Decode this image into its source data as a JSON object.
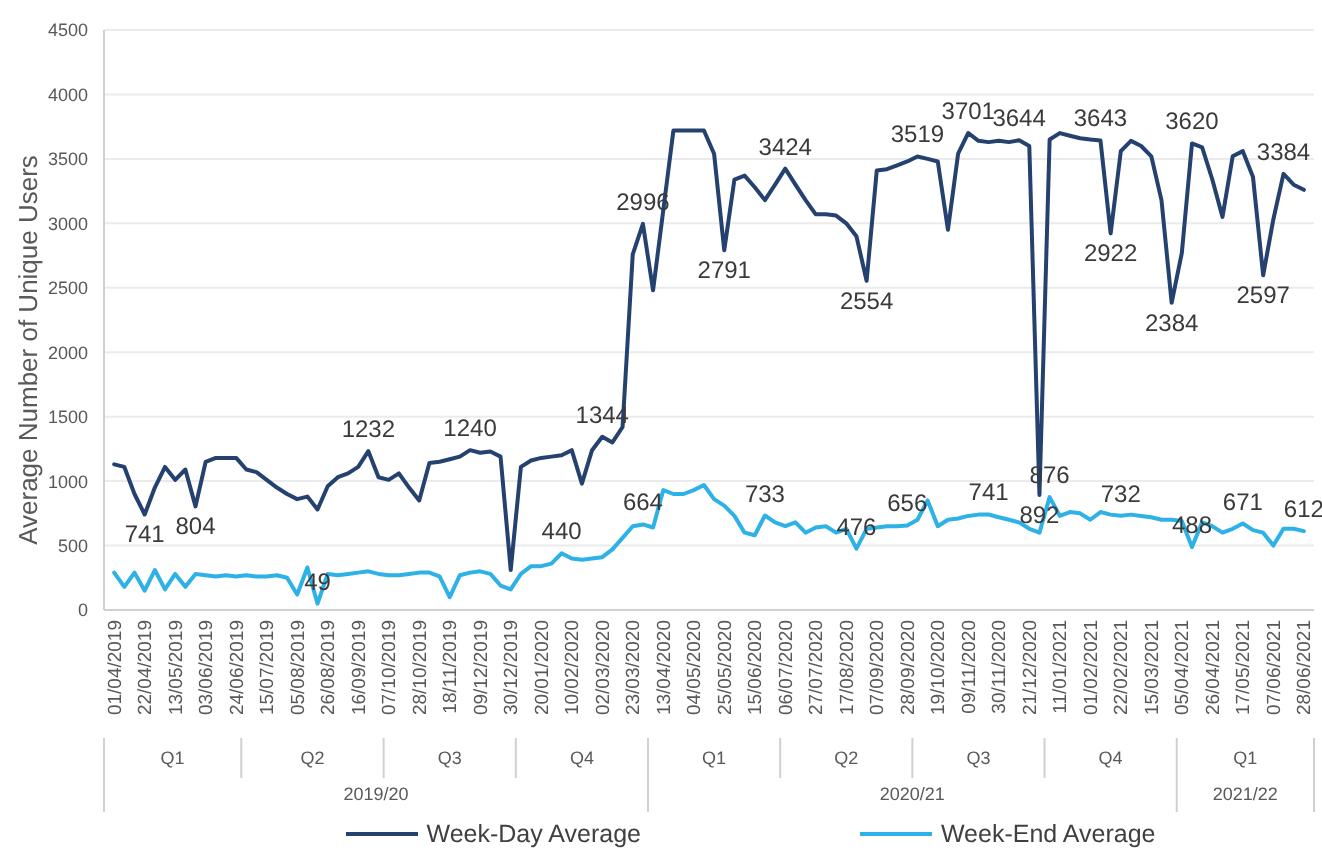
{
  "chart_data": {
    "type": "line",
    "ylabel": "Average Number of Unique Users",
    "x": [
      "2019-04-01",
      "2019-04-08",
      "2019-04-15",
      "2019-04-22",
      "2019-04-29",
      "2019-05-06",
      "2019-05-13",
      "2019-05-20",
      "2019-05-27",
      "2019-06-03",
      "2019-06-10",
      "2019-06-17",
      "2019-06-24",
      "2019-07-01",
      "2019-07-08",
      "2019-07-15",
      "2019-07-22",
      "2019-07-29",
      "2019-08-05",
      "2019-08-12",
      "2019-08-19",
      "2019-08-26",
      "2019-09-02",
      "2019-09-09",
      "2019-09-16",
      "2019-09-23",
      "2019-09-30",
      "2019-10-07",
      "2019-10-14",
      "2019-10-21",
      "2019-10-28",
      "2019-11-04",
      "2019-11-11",
      "2019-11-18",
      "2019-11-25",
      "2019-12-02",
      "2019-12-09",
      "2019-12-16",
      "2019-12-23",
      "2019-12-30",
      "2020-01-06",
      "2020-01-13",
      "2020-01-20",
      "2020-01-27",
      "2020-02-03",
      "2020-02-10",
      "2020-02-17",
      "2020-02-24",
      "2020-03-02",
      "2020-03-09",
      "2020-03-16",
      "2020-03-23",
      "2020-03-30",
      "2020-04-06",
      "2020-04-13",
      "2020-04-20",
      "2020-04-27",
      "2020-05-04",
      "2020-05-11",
      "2020-05-18",
      "2020-05-25",
      "2020-06-01",
      "2020-06-08",
      "2020-06-15",
      "2020-06-22",
      "2020-06-29",
      "2020-07-06",
      "2020-07-13",
      "2020-07-20",
      "2020-07-27",
      "2020-08-03",
      "2020-08-10",
      "2020-08-17",
      "2020-08-24",
      "2020-08-31",
      "2020-09-07",
      "2020-09-14",
      "2020-09-21",
      "2020-09-28",
      "2020-10-05",
      "2020-10-12",
      "2020-10-19",
      "2020-10-26",
      "2020-11-02",
      "2020-11-09",
      "2020-11-16",
      "2020-11-23",
      "2020-11-30",
      "2020-12-07",
      "2020-12-14",
      "2020-12-21",
      "2020-12-28",
      "2021-01-04",
      "2021-01-11",
      "2021-01-18",
      "2021-01-25",
      "2021-02-01",
      "2021-02-08",
      "2021-02-15",
      "2021-02-22",
      "2021-03-01",
      "2021-03-08",
      "2021-03-15",
      "2021-03-22",
      "2021-03-29",
      "2021-04-05",
      "2021-04-12",
      "2021-04-19",
      "2021-04-26",
      "2021-05-03",
      "2021-05-10",
      "2021-05-17",
      "2021-05-24",
      "2021-05-31",
      "2021-06-07",
      "2021-06-14",
      "2021-06-21",
      "2021-06-28"
    ],
    "xlim": [
      "2019-03-25",
      "2021-07-05"
    ],
    "xticks": [
      {
        "value": "2019-04-01",
        "label": "01/04/2019"
      },
      {
        "value": "2019-04-22",
        "label": "22/04/2019"
      },
      {
        "value": "2019-05-13",
        "label": "13/05/2019"
      },
      {
        "value": "2019-06-03",
        "label": "03/06/2019"
      },
      {
        "value": "2019-06-24",
        "label": "24/06/2019"
      },
      {
        "value": "2019-07-15",
        "label": "15/07/2019"
      },
      {
        "value": "2019-08-05",
        "label": "05/08/2019"
      },
      {
        "value": "2019-08-26",
        "label": "26/08/2019"
      },
      {
        "value": "2019-09-16",
        "label": "16/09/2019"
      },
      {
        "value": "2019-10-07",
        "label": "07/10/2019"
      },
      {
        "value": "2019-10-28",
        "label": "28/10/2019"
      },
      {
        "value": "2019-11-18",
        "label": "18/11/2019"
      },
      {
        "value": "2019-12-09",
        "label": "09/12/2019"
      },
      {
        "value": "2019-12-30",
        "label": "30/12/2019"
      },
      {
        "value": "2020-01-20",
        "label": "20/01/2020"
      },
      {
        "value": "2020-02-10",
        "label": "10/02/2020"
      },
      {
        "value": "2020-03-02",
        "label": "02/03/2020"
      },
      {
        "value": "2020-03-23",
        "label": "23/03/2020"
      },
      {
        "value": "2020-04-13",
        "label": "13/04/2020"
      },
      {
        "value": "2020-05-04",
        "label": "04/05/2020"
      },
      {
        "value": "2020-05-25",
        "label": "25/05/2020"
      },
      {
        "value": "2020-06-15",
        "label": "15/06/2020"
      },
      {
        "value": "2020-07-06",
        "label": "06/07/2020"
      },
      {
        "value": "2020-07-27",
        "label": "27/07/2020"
      },
      {
        "value": "2020-08-17",
        "label": "17/08/2020"
      },
      {
        "value": "2020-09-07",
        "label": "07/09/2020"
      },
      {
        "value": "2020-09-28",
        "label": "28/09/2020"
      },
      {
        "value": "2020-10-19",
        "label": "19/10/2020"
      },
      {
        "value": "2020-11-09",
        "label": "09/11/2020"
      },
      {
        "value": "2020-11-30",
        "label": "30/11/2020"
      },
      {
        "value": "2020-12-21",
        "label": "21/12/2020"
      },
      {
        "value": "2021-01-11",
        "label": "11/01/2021"
      },
      {
        "value": "2021-02-01",
        "label": "01/02/2021"
      },
      {
        "value": "2021-02-22",
        "label": "22/02/2021"
      },
      {
        "value": "2021-03-15",
        "label": "15/03/2021"
      },
      {
        "value": "2021-04-05",
        "label": "05/04/2021"
      },
      {
        "value": "2021-04-26",
        "label": "26/04/2021"
      },
      {
        "value": "2021-05-17",
        "label": "17/05/2021"
      },
      {
        "value": "2021-06-07",
        "label": "07/06/2021"
      },
      {
        "value": "2021-06-28",
        "label": "28/06/2021"
      }
    ],
    "ylim": [
      0,
      4500
    ],
    "yticks": [
      0,
      500,
      1000,
      1500,
      2000,
      2500,
      3000,
      3500,
      4000,
      4500
    ],
    "grid": "y",
    "legend": "bottom",
    "series": [
      {
        "name": "Week-Day Average",
        "color": "#24416f",
        "values": [
          1130,
          1110,
          900,
          741,
          950,
          1110,
          1010,
          1090,
          804,
          1150,
          1180,
          1180,
          1180,
          1090,
          1070,
          1010,
          950,
          900,
          860,
          880,
          780,
          960,
          1030,
          1060,
          1110,
          1232,
          1030,
          1010,
          1060,
          950,
          850,
          1140,
          1150,
          1170,
          1190,
          1240,
          1220,
          1230,
          1190,
          310,
          1110,
          1160,
          1180,
          1190,
          1200,
          1240,
          980,
          1240,
          1344,
          1300,
          1420,
          2760,
          2996,
          2480,
          3100,
          3720,
          3720,
          3720,
          3720,
          3540,
          2791,
          3340,
          3370,
          3280,
          3180,
          3300,
          3424,
          3300,
          3180,
          3070,
          3070,
          3060,
          3000,
          2900,
          2554,
          3410,
          3420,
          3450,
          3480,
          3519,
          3500,
          3480,
          2950,
          3540,
          3701,
          3640,
          3630,
          3640,
          3630,
          3644,
          3600,
          892,
          3650,
          3700,
          3680,
          3660,
          3650,
          3643,
          2922,
          3560,
          3640,
          3600,
          3520,
          3180,
          2384,
          2770,
          3620,
          3590,
          3340,
          3050,
          3520,
          3560,
          3360,
          2597,
          3030,
          3384,
          3300,
          3260
        ],
        "value_labels": [
          null,
          null,
          null,
          "741",
          null,
          null,
          null,
          null,
          "804",
          null,
          null,
          null,
          null,
          null,
          null,
          null,
          null,
          null,
          null,
          null,
          null,
          null,
          null,
          null,
          null,
          "1232",
          null,
          null,
          null,
          null,
          null,
          null,
          null,
          null,
          null,
          "1240",
          null,
          null,
          null,
          null,
          null,
          null,
          null,
          null,
          null,
          null,
          null,
          null,
          "1344",
          null,
          null,
          null,
          "2996",
          null,
          null,
          null,
          null,
          null,
          null,
          null,
          "2791",
          null,
          null,
          null,
          null,
          null,
          "3424",
          null,
          null,
          null,
          null,
          null,
          null,
          null,
          "2554",
          null,
          null,
          null,
          null,
          "3519",
          null,
          null,
          null,
          null,
          "3701",
          null,
          null,
          null,
          null,
          "3644",
          null,
          "892",
          null,
          null,
          null,
          null,
          null,
          "3643",
          "2922",
          null,
          null,
          null,
          null,
          null,
          "2384",
          null,
          "3620",
          null,
          null,
          null,
          null,
          null,
          null,
          "2597",
          null,
          "3384",
          null,
          null
        ]
      },
      {
        "name": "Week-End Average",
        "color": "#2db1e6",
        "values": [
          290,
          180,
          290,
          150,
          310,
          160,
          280,
          180,
          280,
          270,
          260,
          270,
          260,
          270,
          260,
          260,
          270,
          250,
          120,
          330,
          49,
          280,
          270,
          280,
          290,
          300,
          280,
          270,
          270,
          280,
          290,
          290,
          260,
          100,
          270,
          290,
          300,
          280,
          190,
          160,
          280,
          340,
          340,
          360,
          440,
          400,
          390,
          400,
          410,
          470,
          560,
          650,
          664,
          640,
          930,
          900,
          900,
          930,
          970,
          860,
          810,
          730,
          600,
          580,
          733,
          680,
          650,
          680,
          600,
          640,
          650,
          600,
          630,
          476,
          630,
          640,
          650,
          650,
          656,
          700,
          850,
          650,
          700,
          710,
          730,
          740,
          741,
          720,
          700,
          680,
          630,
          600,
          876,
          730,
          760,
          750,
          700,
          760,
          740,
          732,
          740,
          730,
          720,
          700,
          700,
          690,
          488,
          680,
          650,
          600,
          630,
          671,
          620,
          600,
          500,
          630,
          630,
          612
        ],
        "value_labels": [
          null,
          null,
          null,
          null,
          null,
          null,
          null,
          null,
          null,
          null,
          null,
          null,
          null,
          null,
          null,
          null,
          null,
          null,
          null,
          null,
          "49",
          null,
          null,
          null,
          null,
          null,
          null,
          null,
          null,
          null,
          null,
          null,
          null,
          null,
          null,
          null,
          null,
          null,
          null,
          null,
          null,
          null,
          null,
          null,
          "440",
          null,
          null,
          null,
          null,
          null,
          null,
          null,
          "664",
          null,
          null,
          null,
          null,
          null,
          null,
          null,
          null,
          null,
          null,
          null,
          "733",
          null,
          null,
          null,
          null,
          null,
          null,
          null,
          null,
          "476",
          null,
          null,
          null,
          null,
          "656",
          null,
          null,
          null,
          null,
          null,
          null,
          null,
          "741",
          null,
          null,
          null,
          null,
          null,
          "876",
          null,
          null,
          null,
          null,
          null,
          null,
          "732",
          null,
          null,
          null,
          null,
          null,
          null,
          "488",
          null,
          null,
          null,
          null,
          "671",
          null,
          null,
          null,
          null,
          null,
          "612"
        ]
      }
    ],
    "annotations": [
      "Q1",
      "Q2",
      "Q3",
      "Q4",
      "Q1",
      "Q2",
      "Q3",
      "Q4",
      "Q1",
      "2019/20",
      "2020/21",
      "2021/22"
    ]
  }
}
